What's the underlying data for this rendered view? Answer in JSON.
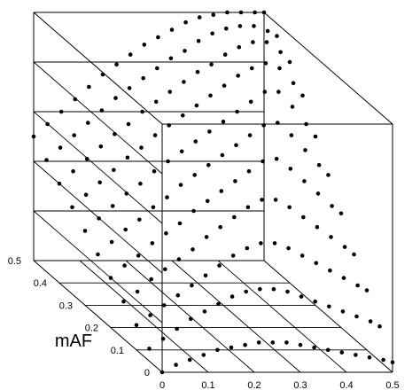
{
  "chart_data": {
    "type": "scatter",
    "projection": "3d",
    "title": "",
    "xlabel": "",
    "ylabel": "mAF",
    "zlabel": "",
    "x_ticks": [
      "0",
      "0.1",
      "0.2",
      "0.3",
      "0.4",
      "0.5"
    ],
    "y_ticks": [
      "0",
      "0.1",
      "0.2",
      "0.3",
      "0.4",
      "0.5"
    ],
    "xlim": [
      0,
      0.5
    ],
    "ylim": [
      0,
      0.5
    ],
    "grid": true,
    "legend": "none",
    "marker_color": "#000000",
    "series": [
      {
        "mAF": 0.0,
        "x": [
          0.0,
          0.03,
          0.06,
          0.09,
          0.12,
          0.15,
          0.18,
          0.21,
          0.24,
          0.27,
          0.3,
          0.33,
          0.36,
          0.39,
          0.42,
          0.45,
          0.48,
          0.5
        ],
        "z": [
          0.0,
          0.03,
          0.05,
          0.07,
          0.09,
          0.1,
          0.11,
          0.12,
          0.12,
          0.12,
          0.11,
          0.1,
          0.09,
          0.08,
          0.07,
          0.06,
          0.05,
          0.04
        ]
      },
      {
        "mAF": 0.05,
        "x": [
          0.0,
          0.03,
          0.06,
          0.09,
          0.12,
          0.15,
          0.18,
          0.21,
          0.24,
          0.27,
          0.3,
          0.33,
          0.36,
          0.39,
          0.42,
          0.45,
          0.48,
          0.5
        ],
        "z": [
          0.05,
          0.09,
          0.13,
          0.17,
          0.2,
          0.23,
          0.26,
          0.28,
          0.29,
          0.29,
          0.28,
          0.26,
          0.24,
          0.22,
          0.2,
          0.18,
          0.16,
          0.14
        ]
      },
      {
        "mAF": 0.1,
        "x": [
          0.0,
          0.03,
          0.06,
          0.09,
          0.12,
          0.15,
          0.18,
          0.21,
          0.24,
          0.27,
          0.3,
          0.33,
          0.36,
          0.39,
          0.42,
          0.45,
          0.48,
          0.5
        ],
        "z": [
          0.1,
          0.14,
          0.18,
          0.22,
          0.26,
          0.3,
          0.34,
          0.38,
          0.41,
          0.43,
          0.43,
          0.41,
          0.38,
          0.35,
          0.32,
          0.29,
          0.26,
          0.24
        ]
      },
      {
        "mAF": 0.15,
        "x": [
          0.0,
          0.03,
          0.06,
          0.09,
          0.12,
          0.15,
          0.18,
          0.21,
          0.24,
          0.27,
          0.3,
          0.33,
          0.36,
          0.39,
          0.42,
          0.45,
          0.48,
          0.5
        ],
        "z": [
          0.15,
          0.19,
          0.24,
          0.28,
          0.32,
          0.36,
          0.41,
          0.45,
          0.49,
          0.53,
          0.56,
          0.56,
          0.53,
          0.49,
          0.45,
          0.41,
          0.37,
          0.34
        ]
      },
      {
        "mAF": 0.2,
        "x": [
          0.0,
          0.03,
          0.06,
          0.09,
          0.12,
          0.15,
          0.18,
          0.21,
          0.24,
          0.27,
          0.3,
          0.33,
          0.36,
          0.39,
          0.42,
          0.45,
          0.48,
          0.5
        ],
        "z": [
          0.2,
          0.25,
          0.29,
          0.34,
          0.38,
          0.42,
          0.47,
          0.51,
          0.55,
          0.59,
          0.63,
          0.67,
          0.68,
          0.64,
          0.59,
          0.54,
          0.49,
          0.46
        ]
      },
      {
        "mAF": 0.25,
        "x": [
          0.0,
          0.03,
          0.06,
          0.09,
          0.12,
          0.15,
          0.18,
          0.21,
          0.24,
          0.27,
          0.3,
          0.33,
          0.36,
          0.39,
          0.42,
          0.45,
          0.48,
          0.5
        ],
        "z": [
          0.25,
          0.3,
          0.35,
          0.39,
          0.44,
          0.48,
          0.53,
          0.57,
          0.61,
          0.65,
          0.69,
          0.73,
          0.77,
          0.78,
          0.73,
          0.67,
          0.61,
          0.57
        ]
      },
      {
        "mAF": 0.3,
        "x": [
          0.0,
          0.03,
          0.06,
          0.09,
          0.12,
          0.15,
          0.18,
          0.21,
          0.24,
          0.27,
          0.3,
          0.33,
          0.36,
          0.39,
          0.42,
          0.45,
          0.48,
          0.5
        ],
        "z": [
          0.3,
          0.35,
          0.4,
          0.45,
          0.49,
          0.54,
          0.58,
          0.62,
          0.66,
          0.7,
          0.74,
          0.78,
          0.82,
          0.86,
          0.86,
          0.8,
          0.73,
          0.68
        ]
      },
      {
        "mAF": 0.35,
        "x": [
          0.0,
          0.03,
          0.06,
          0.09,
          0.12,
          0.15,
          0.18,
          0.21,
          0.24,
          0.27,
          0.3,
          0.33,
          0.36,
          0.39,
          0.42,
          0.45,
          0.48,
          0.5
        ],
        "z": [
          0.35,
          0.4,
          0.45,
          0.5,
          0.55,
          0.59,
          0.64,
          0.68,
          0.72,
          0.76,
          0.8,
          0.84,
          0.88,
          0.91,
          0.93,
          0.91,
          0.85,
          0.8
        ]
      },
      {
        "mAF": 0.4,
        "x": [
          0.0,
          0.03,
          0.06,
          0.09,
          0.12,
          0.15,
          0.18,
          0.21,
          0.24,
          0.27,
          0.3,
          0.33,
          0.36,
          0.39,
          0.42,
          0.45,
          0.48,
          0.5
        ],
        "z": [
          0.4,
          0.45,
          0.5,
          0.55,
          0.6,
          0.64,
          0.69,
          0.73,
          0.77,
          0.81,
          0.85,
          0.88,
          0.92,
          0.95,
          0.97,
          0.97,
          0.93,
          0.89
        ]
      },
      {
        "mAF": 0.45,
        "x": [
          0.0,
          0.03,
          0.06,
          0.09,
          0.12,
          0.15,
          0.18,
          0.21,
          0.24,
          0.27,
          0.3,
          0.33,
          0.36,
          0.39,
          0.42,
          0.45,
          0.48,
          0.5
        ],
        "z": [
          0.45,
          0.5,
          0.55,
          0.6,
          0.65,
          0.7,
          0.74,
          0.78,
          0.82,
          0.86,
          0.89,
          0.93,
          0.96,
          0.98,
          0.99,
          0.99,
          0.97,
          0.95
        ]
      },
      {
        "mAF": 0.5,
        "x": [
          0.0,
          0.03,
          0.06,
          0.09,
          0.12,
          0.15,
          0.18,
          0.21,
          0.24,
          0.27,
          0.3,
          0.33,
          0.36,
          0.39,
          0.42,
          0.45,
          0.48,
          0.5
        ],
        "z": [
          0.5,
          0.55,
          0.6,
          0.65,
          0.7,
          0.75,
          0.79,
          0.83,
          0.87,
          0.9,
          0.93,
          0.96,
          0.98,
          0.99,
          1.0,
          1.0,
          1.0,
          1.0
        ]
      }
    ]
  }
}
